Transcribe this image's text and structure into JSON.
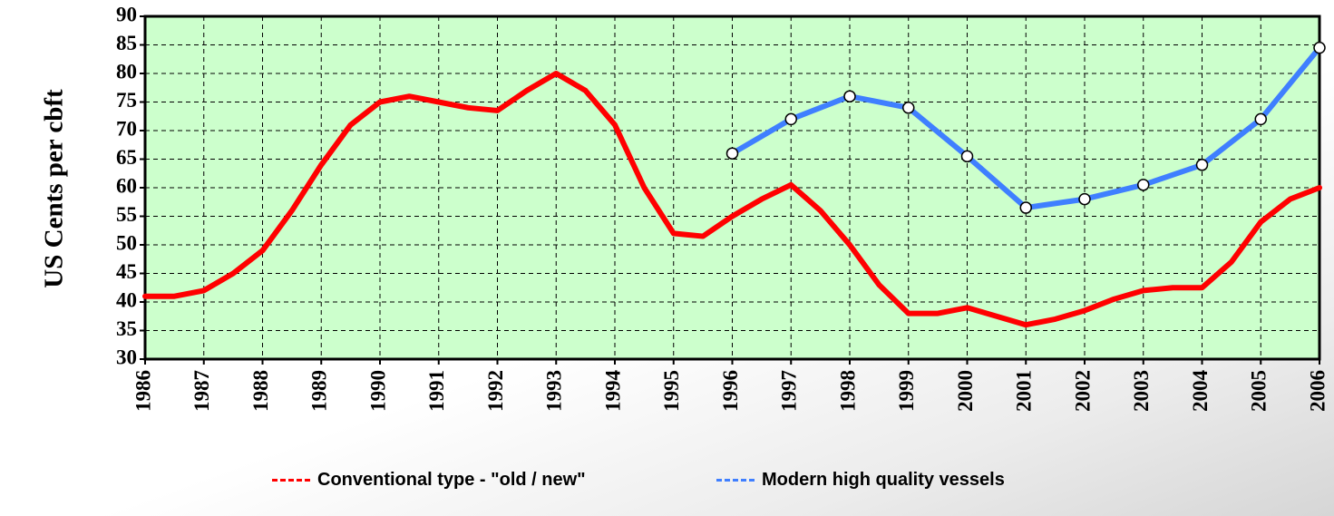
{
  "chart_data": {
    "type": "line",
    "y_label": "US Cents per cbft",
    "xlim": [
      1986,
      2006
    ],
    "xticks": [
      1986,
      1987,
      1988,
      1989,
      1990,
      1991,
      1992,
      1993,
      1994,
      1995,
      1996,
      1997,
      1998,
      1999,
      2000,
      2001,
      2002,
      2003,
      2004,
      2005,
      2006
    ],
    "ylim": [
      30,
      90
    ],
    "yticks": [
      30,
      35,
      40,
      45,
      50,
      55,
      60,
      65,
      70,
      75,
      80,
      85,
      90
    ],
    "grid": true,
    "background": "#ccffcc",
    "series": [
      {
        "name": "Conventional type - \"old / new\"",
        "color": "#ff0000",
        "markers": false,
        "x": [
          1986,
          1986.5,
          1987,
          1987.5,
          1988,
          1988.5,
          1989,
          1989.5,
          1990,
          1990.5,
          1991,
          1991.5,
          1992,
          1992.5,
          1993,
          1993.5,
          1994,
          1994.5,
          1995,
          1995.5,
          1996,
          1996.5,
          1997,
          1997.5,
          1998,
          1998.5,
          1999,
          1999.5,
          2000,
          2000.5,
          2001,
          2001.5,
          2002,
          2002.5,
          2003,
          2003.5,
          2004,
          2004.5,
          2005,
          2005.5,
          2006
        ],
        "values": [
          41,
          41,
          42,
          45,
          49,
          56,
          64,
          71,
          75,
          76,
          75,
          74,
          73.5,
          77,
          80,
          77,
          71,
          60,
          52,
          51.5,
          55,
          58,
          60.5,
          56,
          50,
          43,
          38,
          38,
          39,
          37.5,
          36,
          37,
          38.5,
          40.5,
          42,
          42.5,
          42.5,
          47,
          54,
          58,
          60
        ]
      },
      {
        "name": "Modern high quality vessels",
        "color": "#3f7fff",
        "markers": true,
        "x": [
          1996,
          1997,
          1998,
          1999,
          2000,
          2001,
          2002,
          2003,
          2004,
          2005,
          2006
        ],
        "values": [
          66,
          72,
          76,
          74,
          65.5,
          56.5,
          58,
          60.5,
          64,
          72,
          84.5
        ]
      }
    ]
  }
}
